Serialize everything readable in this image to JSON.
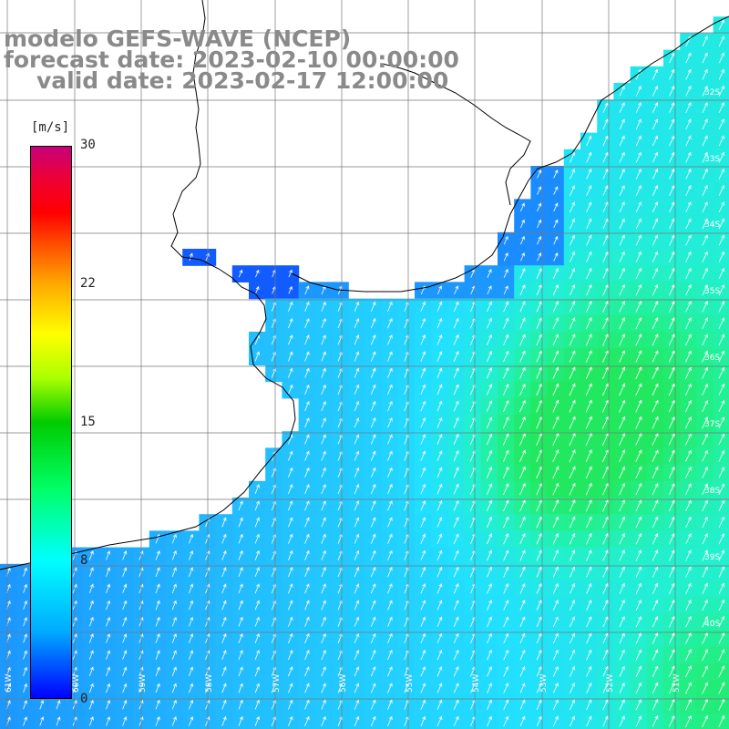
{
  "title": {
    "line1": "modelo GEFS-WAVE (NCEP)",
    "line2": "forecast date: 2023-02-10 00:00:00",
    "line3": "valid date: 2023-02-17 12:00:00"
  },
  "colorbar": {
    "units": "[m/s]",
    "ticks": [
      {
        "label": "30",
        "value": 30
      },
      {
        "label": "22",
        "value": 22
      },
      {
        "label": "15",
        "value": 15
      },
      {
        "label": "8",
        "value": 8
      },
      {
        "label": "0",
        "value": 0
      }
    ],
    "colors": [
      "#0000ff",
      "#00aaff",
      "#00ffff",
      "#00ff66",
      "#00cc00",
      "#ffff00",
      "#ff0000",
      "#c8007a"
    ]
  },
  "lat_labels": [
    "32S",
    "33S",
    "34S",
    "35S",
    "36S",
    "37S",
    "38S",
    "39S",
    "40S"
  ],
  "lon_labels": [
    "61W",
    "60W",
    "59W",
    "58W",
    "57W",
    "56W",
    "55W",
    "54W",
    "53W",
    "52W",
    "51W"
  ],
  "colors": {
    "land": "#ffffff",
    "grid": "#777777",
    "coast": "#000000",
    "arrow": "#ffffff",
    "title": "#8a8a8a"
  }
}
